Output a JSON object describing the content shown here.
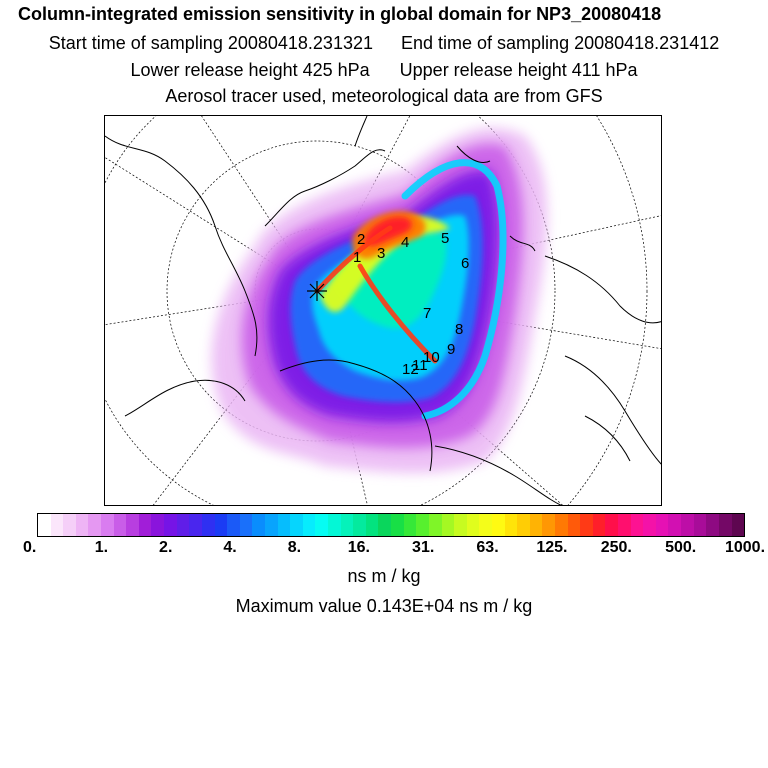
{
  "header": {
    "title": "Column-integrated emission sensitivity in global domain for NP3_20080418",
    "start_label": "Start time of sampling 20080418.231321",
    "end_label": "End time of sampling 20080418.231412",
    "lower_label": "Lower release height  425 hPa",
    "upper_label": "Upper release height  411 hPa",
    "note": "Aerosol tracer used, meteorological data are from GFS"
  },
  "chart_data": {
    "type": "heatmap",
    "title": "Column-integrated emission sensitivity in global domain for NP3_20080418",
    "projection": "north polar stereographic",
    "colorbar": {
      "unit": "ns m / kg",
      "tick_labels": [
        "0.",
        "1.",
        "2.",
        "4.",
        "8.",
        "16.",
        "31.",
        "63.",
        "125.",
        "250.",
        "500.",
        "1000."
      ],
      "colors": [
        "#ffffff",
        "#fbe6fb",
        "#f5cff8",
        "#eeb4f5",
        "#e598f2",
        "#d97cf0",
        "#c95de8",
        "#b83ee0",
        "#a11ed8",
        "#8a14dc",
        "#7614e6",
        "#601ee8",
        "#4a26ee",
        "#2f30f2",
        "#1b3cf4",
        "#1b5af7",
        "#1a70fa",
        "#0a8dfd",
        "#08a4fd",
        "#06bdfd",
        "#06d5fd",
        "#07ecfd",
        "#06fcf3",
        "#04f7d6",
        "#05f2ba",
        "#04ea9e",
        "#03e37f",
        "#0ad65c",
        "#18df46",
        "#36e838",
        "#57f02e",
        "#7ff528",
        "#a5f823",
        "#c7fb20",
        "#e0fd1d",
        "#f4fd1a",
        "#fffa12",
        "#ffe409",
        "#ffcd05",
        "#ffb304",
        "#ff9704",
        "#ff7904",
        "#ff5a0a",
        "#ff3a16",
        "#ff1f2a",
        "#ff0f4a",
        "#ff0f6e",
        "#fd1292",
        "#f412a8",
        "#e611b4",
        "#d210b2",
        "#bd0ea7",
        "#a80c99",
        "#8e0a82",
        "#740866",
        "#5e0650"
      ]
    },
    "release_location_numbers": [
      "1",
      "2",
      "3",
      "4",
      "5",
      "6",
      "7",
      "8",
      "9",
      "10",
      "11",
      "12"
    ],
    "maximum_value_text": "Maximum value  0.143E+04 ns m / kg"
  }
}
